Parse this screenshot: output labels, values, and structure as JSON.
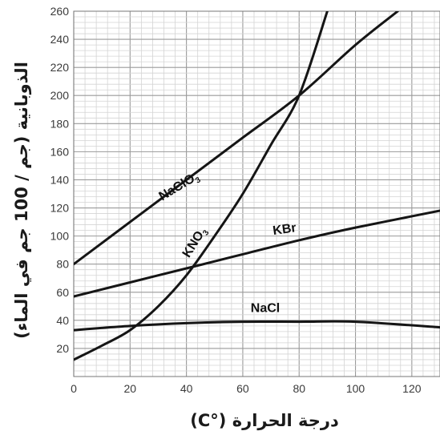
{
  "chart_data": {
    "type": "line",
    "xlabel": "درجة الحرارة (°C)",
    "ylabel": "الذوبانية (جم / 100 جم في الماء)",
    "xlim": [
      0,
      130
    ],
    "ylim": [
      0,
      260
    ],
    "x_ticks": [
      "0",
      "20",
      "40",
      "60",
      "80",
      "100",
      "120"
    ],
    "y_ticks": [
      "20",
      "40",
      "60",
      "80",
      "100",
      "120",
      "140",
      "160",
      "180",
      "200",
      "220",
      "240",
      "260"
    ],
    "grid": true,
    "series": [
      {
        "name": "NaClO₃",
        "label_main": "NaClO",
        "label_sub": "3",
        "x": [
          0,
          20,
          40,
          60,
          80,
          100,
          115
        ],
        "y": [
          80,
          110,
          140,
          170,
          200,
          236,
          260
        ]
      },
      {
        "name": "KNO₃",
        "label_main": "KNO",
        "label_sub": "3",
        "x": [
          0,
          10,
          20,
          30,
          40,
          50,
          60,
          70,
          80,
          90
        ],
        "y": [
          12,
          22,
          33,
          50,
          72,
          100,
          130,
          165,
          200,
          260
        ]
      },
      {
        "name": "KBr",
        "label_main": "KBr",
        "label_sub": "",
        "x": [
          0,
          20,
          40,
          60,
          80,
          100,
          130
        ],
        "y": [
          57,
          67,
          77,
          87,
          97,
          106,
          118
        ]
      },
      {
        "name": "NaCl",
        "label_main": "NaCl",
        "label_sub": "",
        "x": [
          0,
          20,
          40,
          60,
          80,
          100,
          130
        ],
        "y": [
          33,
          36,
          38,
          39,
          39,
          39,
          35
        ]
      }
    ]
  }
}
